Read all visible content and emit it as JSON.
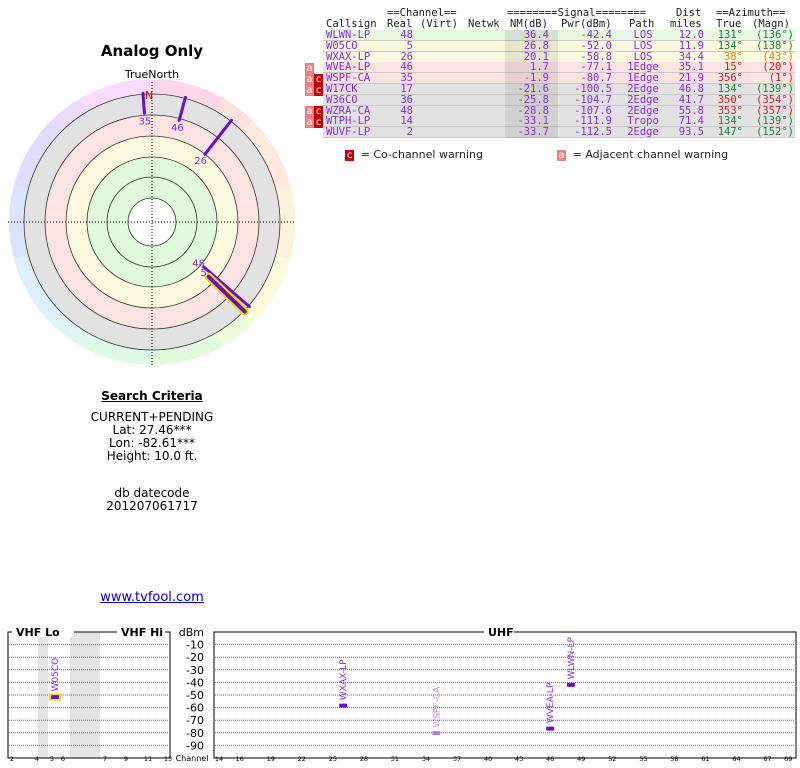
{
  "title": "Analog Only",
  "north_label": "TrueNorth",
  "north_marker": "N",
  "search": {
    "heading": "Search Criteria",
    "mode": "CURRENT+PENDING",
    "lat": "Lat: 27.46***",
    "lon": "Lon: -82.61***",
    "height": "Height: 10.0 ft."
  },
  "db": {
    "label": "db datecode",
    "value": "201207061717"
  },
  "link": "www.tvfool.com",
  "table": {
    "group_headers": {
      "channel": "==Channel==",
      "signal": "========Signal========",
      "dist": "Dist",
      "azimuth": "==Azimuth=="
    },
    "headers": {
      "callsign": "Callsign",
      "real": "Real",
      "virt": "(Virt)",
      "netwk": "Netwk",
      "nm": "NM(dB)",
      "pwr": "Pwr(dBm)",
      "path": "Path",
      "dist": "miles",
      "true": "True",
      "magn": "(Magn)"
    },
    "rows": [
      {
        "callsign": "WLWN-LP",
        "real": "48",
        "nm": "36.4",
        "pwr": "-42.4",
        "path": "LOS",
        "dist": "12.0",
        "true": "131°",
        "magn": "(136°)",
        "bg": "#e6f8e0",
        "az_color": "#208040",
        "warn": ""
      },
      {
        "callsign": "W05CO",
        "real": "5",
        "nm": "26.8",
        "pwr": "-52.0",
        "path": "LOS",
        "dist": "11.9",
        "true": "134°",
        "magn": "(138°)",
        "bg": "#fafade",
        "az_color": "#208040",
        "warn": ""
      },
      {
        "callsign": "WXAX-LP",
        "real": "26",
        "nm": "20.1",
        "pwr": "-58.8",
        "path": "LOS",
        "dist": "34.4",
        "true": "38°",
        "magn": "(43°)",
        "bg": "#fafade",
        "az_color": "#e08020",
        "warn": ""
      },
      {
        "callsign": "WVEA-LP",
        "real": "46",
        "nm": "1.7",
        "pwr": "-77.1",
        "path": "1Edge",
        "dist": "35.1",
        "true": "15°",
        "magn": "(20°)",
        "bg": "#fde2e2",
        "az_color": "#d02020",
        "warn": "a"
      },
      {
        "callsign": "WSPF-CA",
        "real": "35",
        "nm": "-1.9",
        "pwr": "-80.7",
        "path": "1Edge",
        "dist": "21.9",
        "true": "356°",
        "magn": "(1°)",
        "bg": "#fde2e2",
        "az_color": "#d02020",
        "warn": "ac"
      },
      {
        "callsign": "W17CK",
        "real": "17",
        "nm": "-21.6",
        "pwr": "-100.5",
        "path": "2Edge",
        "dist": "46.8",
        "true": "134°",
        "magn": "(139°)",
        "bg": "#e2e2e2",
        "az_color": "#208040",
        "warn": "ac"
      },
      {
        "callsign": "W36CO",
        "real": "36",
        "nm": "-25.8",
        "pwr": "-104.7",
        "path": "2Edge",
        "dist": "41.7",
        "true": "350°",
        "magn": "(354°)",
        "bg": "#e2e2e2",
        "az_color": "#d02020",
        "warn": ""
      },
      {
        "callsign": "WZRA-CA",
        "real": "48",
        "nm": "-28.8",
        "pwr": "-107.6",
        "path": "2Edge",
        "dist": "55.8",
        "true": "353°",
        "magn": "(357°)",
        "bg": "#e2e2e2",
        "az_color": "#d02020",
        "warn": "ac"
      },
      {
        "callsign": "WTPH-LP",
        "real": "14",
        "nm": "-33.1",
        "pwr": "-111.9",
        "path": "Tropo",
        "dist": "71.4",
        "true": "134°",
        "magn": "(139°)",
        "bg": "#e2e2e2",
        "az_color": "#208040",
        "warn": "ac"
      },
      {
        "callsign": "WUVF-LP",
        "real": "2",
        "nm": "-33.7",
        "pwr": "-112.5",
        "path": "2Edge",
        "dist": "93.5",
        "true": "147°",
        "magn": "(152°)",
        "bg": "#e2e2e2",
        "az_color": "#208040",
        "warn": ""
      }
    ],
    "legend": {
      "co_icon": "c",
      "co": "= Co-channel warning",
      "adj_icon": "a",
      "adj": "= Adjacent channel warning"
    }
  },
  "chart_data": [
    {
      "type": "polar",
      "title": "Analog Only",
      "stations": [
        {
          "channel": "35",
          "azimuth": 356,
          "nm": -1.9
        },
        {
          "channel": "46",
          "azimuth": 15,
          "nm": 1.7
        },
        {
          "channel": "26",
          "azimuth": 38,
          "nm": 20.1
        },
        {
          "channel": "48",
          "azimuth": 131,
          "nm": 36.4
        },
        {
          "channel": "5",
          "azimuth": 134,
          "nm": 26.8,
          "highlight": true
        }
      ]
    },
    {
      "type": "scatter",
      "ylabel": "dBm",
      "xlabel": "Channel",
      "ylim": [
        -100,
        0
      ],
      "yticks": [
        "-10",
        "-20",
        "-30",
        "-40",
        "-50",
        "-60",
        "-70",
        "-80",
        "-90"
      ],
      "bands": {
        "vhf_lo": "VHF Lo",
        "vhf_hi": "VHF Hi",
        "uhf": "UHF"
      },
      "vhf_ticks": [
        "2",
        "4",
        "5",
        "6",
        "7",
        "9",
        "11",
        "13"
      ],
      "uhf_ticks": [
        "14",
        "16",
        "19",
        "22",
        "25",
        "28",
        "31",
        "34",
        "37",
        "40",
        "43",
        "46",
        "49",
        "52",
        "55",
        "58",
        "61",
        "64",
        "67",
        "69"
      ],
      "points": [
        {
          "label": "W05CO",
          "channel": 5,
          "dbm": -52.0,
          "band": "vhf",
          "highlight": true
        },
        {
          "label": "WXAX-LP",
          "channel": 26,
          "dbm": -58.8,
          "band": "uhf"
        },
        {
          "label": "WSPF-CA",
          "channel": 35,
          "dbm": -80.7,
          "band": "uhf",
          "faded": true
        },
        {
          "label": "WVEA-LP",
          "channel": 46,
          "dbm": -77.1,
          "band": "uhf"
        },
        {
          "label": "WLWN-LP",
          "channel": 48,
          "dbm": -42.4,
          "band": "uhf"
        }
      ]
    }
  ]
}
